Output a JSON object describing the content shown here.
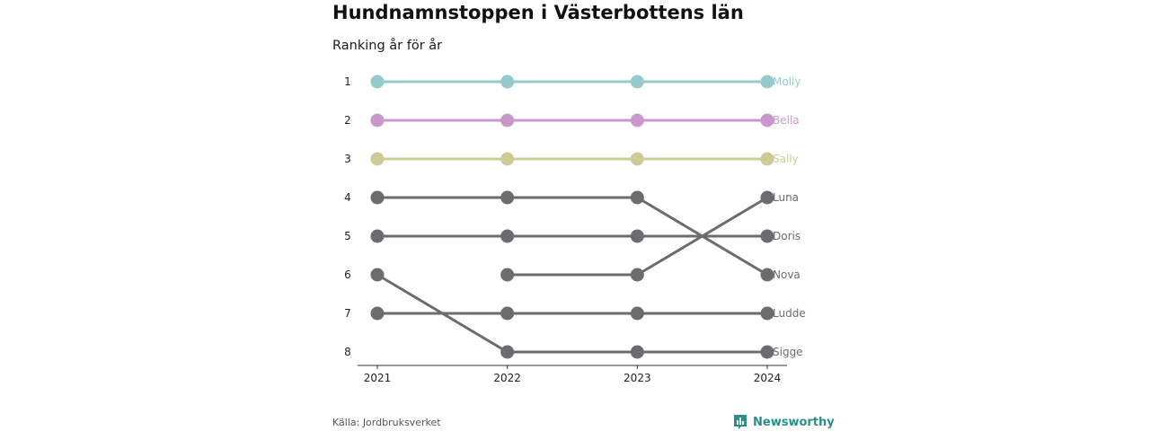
{
  "header": {
    "title": "Hundnamnstoppen i Västerbottens län",
    "subtitle": "Ranking år för år"
  },
  "footer": {
    "source": "Källa: Jordbruksverket",
    "brand": "Newsworthy",
    "brand_color": "#2a8f86",
    "brand_icon": "bar-chart-icon"
  },
  "chart_data": {
    "type": "line",
    "title": "Hundnamnstoppen i Västerbottens län",
    "subtitle": "Ranking år för år",
    "x": [
      "2021",
      "2022",
      "2023",
      "2024"
    ],
    "y_ticks": [
      1,
      2,
      3,
      4,
      5,
      6,
      7,
      8
    ],
    "y_reversed": true,
    "ylim": [
      1,
      8
    ],
    "grid": false,
    "series": [
      {
        "name": "Molly",
        "values": [
          1,
          1,
          1,
          1
        ],
        "color": "#96cbcd"
      },
      {
        "name": "Bella",
        "values": [
          2,
          2,
          2,
          2
        ],
        "color": "#c997cb"
      },
      {
        "name": "Sally",
        "values": [
          3,
          3,
          3,
          3
        ],
        "color": "#cdcb96"
      },
      {
        "name": "Luna",
        "values": [
          null,
          6,
          6,
          4
        ],
        "color": "#6b6b70"
      },
      {
        "name": "Doris",
        "values": [
          5,
          5,
          5,
          5
        ],
        "color": "#6b6b70"
      },
      {
        "name": "Nova",
        "values": [
          4,
          4,
          4,
          6
        ],
        "color": "#6b6b70"
      },
      {
        "name": "Ludde",
        "values": [
          7,
          7,
          7,
          7
        ],
        "color": "#6b6b70"
      },
      {
        "name": "Sigge",
        "values": [
          6,
          8,
          8,
          8
        ],
        "color": "#6b6b70"
      }
    ]
  }
}
